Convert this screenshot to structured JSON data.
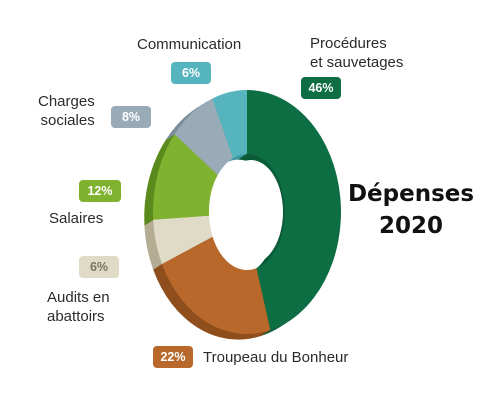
{
  "chart_data": {
    "type": "pie",
    "title": "Dépenses\n2020",
    "slices": [
      {
        "label": "Procédures\net sauvetages",
        "value": 46,
        "value_label": "46%",
        "color": "#0d6e44",
        "side": "#0a5b37",
        "badge_text_color": "#ffffff"
      },
      {
        "label": "Troupeau du Bonheur",
        "value": 22,
        "value_label": "22%",
        "color": "#b8682a",
        "side": "#8f4e1d",
        "badge_text_color": "#ffffff"
      },
      {
        "label": "Audits en\nabattoirs",
        "value": 6,
        "value_label": "6%",
        "color": "#e0dbc6",
        "side": "#b5ad93",
        "badge_text_color": "#7a7463"
      },
      {
        "label": "Salaires",
        "value": 12,
        "value_label": "12%",
        "color": "#7fb22e",
        "side": "#5b8a1d",
        "badge_text_color": "#ffffff"
      },
      {
        "label": "Charges\nsociales",
        "value": 8,
        "value_label": "8%",
        "color": "#9aabb8",
        "side": "#7b8c9a",
        "badge_text_color": "#ffffff"
      },
      {
        "label": "Communication",
        "value": 6,
        "value_label": "6%",
        "color": "#56b4bf",
        "side": "#3f98a3",
        "badge_text_color": "#ffffff"
      }
    ]
  }
}
